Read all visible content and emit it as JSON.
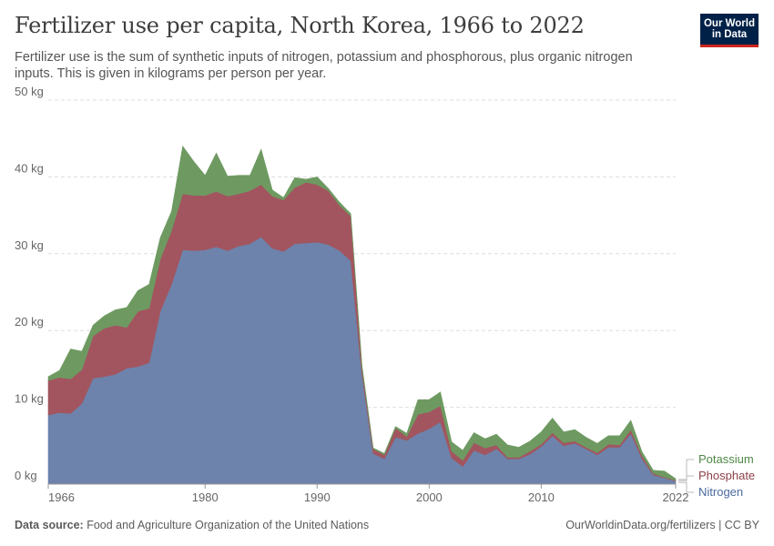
{
  "header": {
    "title": "Fertilizer use per capita, North Korea, 1966 to 2022",
    "subtitle": "Fertilizer use is the sum of synthetic inputs of nitrogen, potassium and phosphorous, plus organic nitrogen inputs. This is given in kilograms per person per year."
  },
  "logo": {
    "line1": "Our World",
    "line2": "in Data",
    "bg_color": "#002147",
    "accent_color": "#ce261e"
  },
  "footer": {
    "source_label": "Data source:",
    "source_text": "Food and Agriculture Organization of the United Nations",
    "url_license": "OurWorldinData.org/fertilizers | CC BY"
  },
  "chart_data": {
    "type": "area",
    "stacked": true,
    "x": [
      1966,
      1967,
      1968,
      1969,
      1970,
      1971,
      1972,
      1973,
      1974,
      1975,
      1976,
      1977,
      1978,
      1979,
      1980,
      1981,
      1982,
      1983,
      1984,
      1985,
      1986,
      1987,
      1988,
      1989,
      1990,
      1991,
      1992,
      1993,
      1994,
      1995,
      1996,
      1997,
      1998,
      1999,
      2000,
      2001,
      2002,
      2003,
      2004,
      2005,
      2006,
      2007,
      2008,
      2009,
      2010,
      2011,
      2012,
      2013,
      2014,
      2015,
      2016,
      2017,
      2018,
      2019,
      2020,
      2021,
      2022
    ],
    "series": [
      {
        "name": "Nitrogen",
        "color": "#6d83ab",
        "values": [
          9.0,
          9.3,
          9.2,
          10.5,
          13.8,
          14.0,
          14.3,
          15.1,
          15.3,
          15.8,
          22.5,
          26.0,
          30.5,
          30.4,
          30.5,
          30.9,
          30.4,
          31.0,
          31.3,
          32.2,
          30.7,
          30.3,
          31.3,
          31.4,
          31.5,
          31.2,
          30.4,
          29.1,
          14.3,
          4.0,
          3.3,
          6.1,
          5.7,
          6.6,
          7.2,
          8.1,
          3.4,
          2.3,
          4.4,
          3.8,
          4.6,
          3.3,
          3.3,
          3.9,
          4.9,
          6.3,
          5.0,
          5.3,
          4.6,
          3.8,
          4.8,
          4.8,
          6.6,
          3.3,
          1.2,
          0.8,
          0.4
        ]
      },
      {
        "name": "Phosphate",
        "color": "#a2555f",
        "values": [
          4.5,
          4.6,
          4.5,
          4.4,
          5.5,
          6.3,
          6.4,
          5.3,
          7.2,
          7.1,
          6.8,
          7.0,
          7.3,
          7.2,
          7.1,
          7.2,
          7.1,
          6.8,
          6.9,
          6.8,
          6.8,
          6.7,
          7.3,
          7.9,
          7.5,
          7.0,
          5.9,
          5.8,
          0.8,
          0.6,
          0.5,
          1.2,
          0.5,
          2.5,
          2.2,
          2.1,
          0.9,
          0.8,
          1.0,
          0.9,
          0.5,
          0.2,
          0.2,
          0.4,
          0.3,
          0.4,
          0.4,
          0.3,
          0.2,
          0.3,
          0.4,
          0.3,
          0.5,
          0.4,
          0.2,
          0.1,
          0.1
        ]
      },
      {
        "name": "Potassium",
        "color": "#6e9a62",
        "values": [
          0.5,
          0.9,
          3.9,
          2.4,
          1.4,
          1.6,
          2.0,
          2.6,
          2.7,
          3.1,
          2.8,
          2.5,
          6.2,
          4.4,
          2.6,
          5.0,
          2.6,
          2.4,
          2.0,
          4.6,
          0.8,
          0.3,
          1.3,
          0.4,
          1.0,
          0.3,
          0.4,
          0.3,
          0.4,
          0.1,
          0.2,
          0.2,
          0.4,
          1.9,
          1.6,
          1.8,
          1.2,
          1.3,
          1.3,
          1.2,
          1.4,
          1.6,
          1.3,
          1.3,
          1.6,
          1.9,
          1.4,
          1.5,
          1.3,
          1.2,
          1.1,
          1.2,
          1.2,
          0.5,
          0.4,
          0.8,
          0.2
        ]
      }
    ],
    "yunit": "kg",
    "ylim": [
      0,
      50
    ],
    "yticks": [
      0,
      10,
      20,
      30,
      40,
      50
    ],
    "ytick_labels": [
      "0 kg",
      "10 kg",
      "20 kg",
      "30 kg",
      "40 kg",
      "50 kg"
    ],
    "xticks": [
      1966,
      1980,
      1990,
      2000,
      2010,
      2022
    ],
    "xtick_labels": [
      "1966",
      "1980",
      "1990",
      "2000",
      "2010",
      "2022"
    ],
    "grid": true,
    "legend": "right-end-labels",
    "legend_entries": [
      {
        "label": "Potassium",
        "color": "#4e8745"
      },
      {
        "label": "Phosphate",
        "color": "#8d3f47"
      },
      {
        "label": "Nitrogen",
        "color": "#4b6a9c"
      }
    ]
  }
}
